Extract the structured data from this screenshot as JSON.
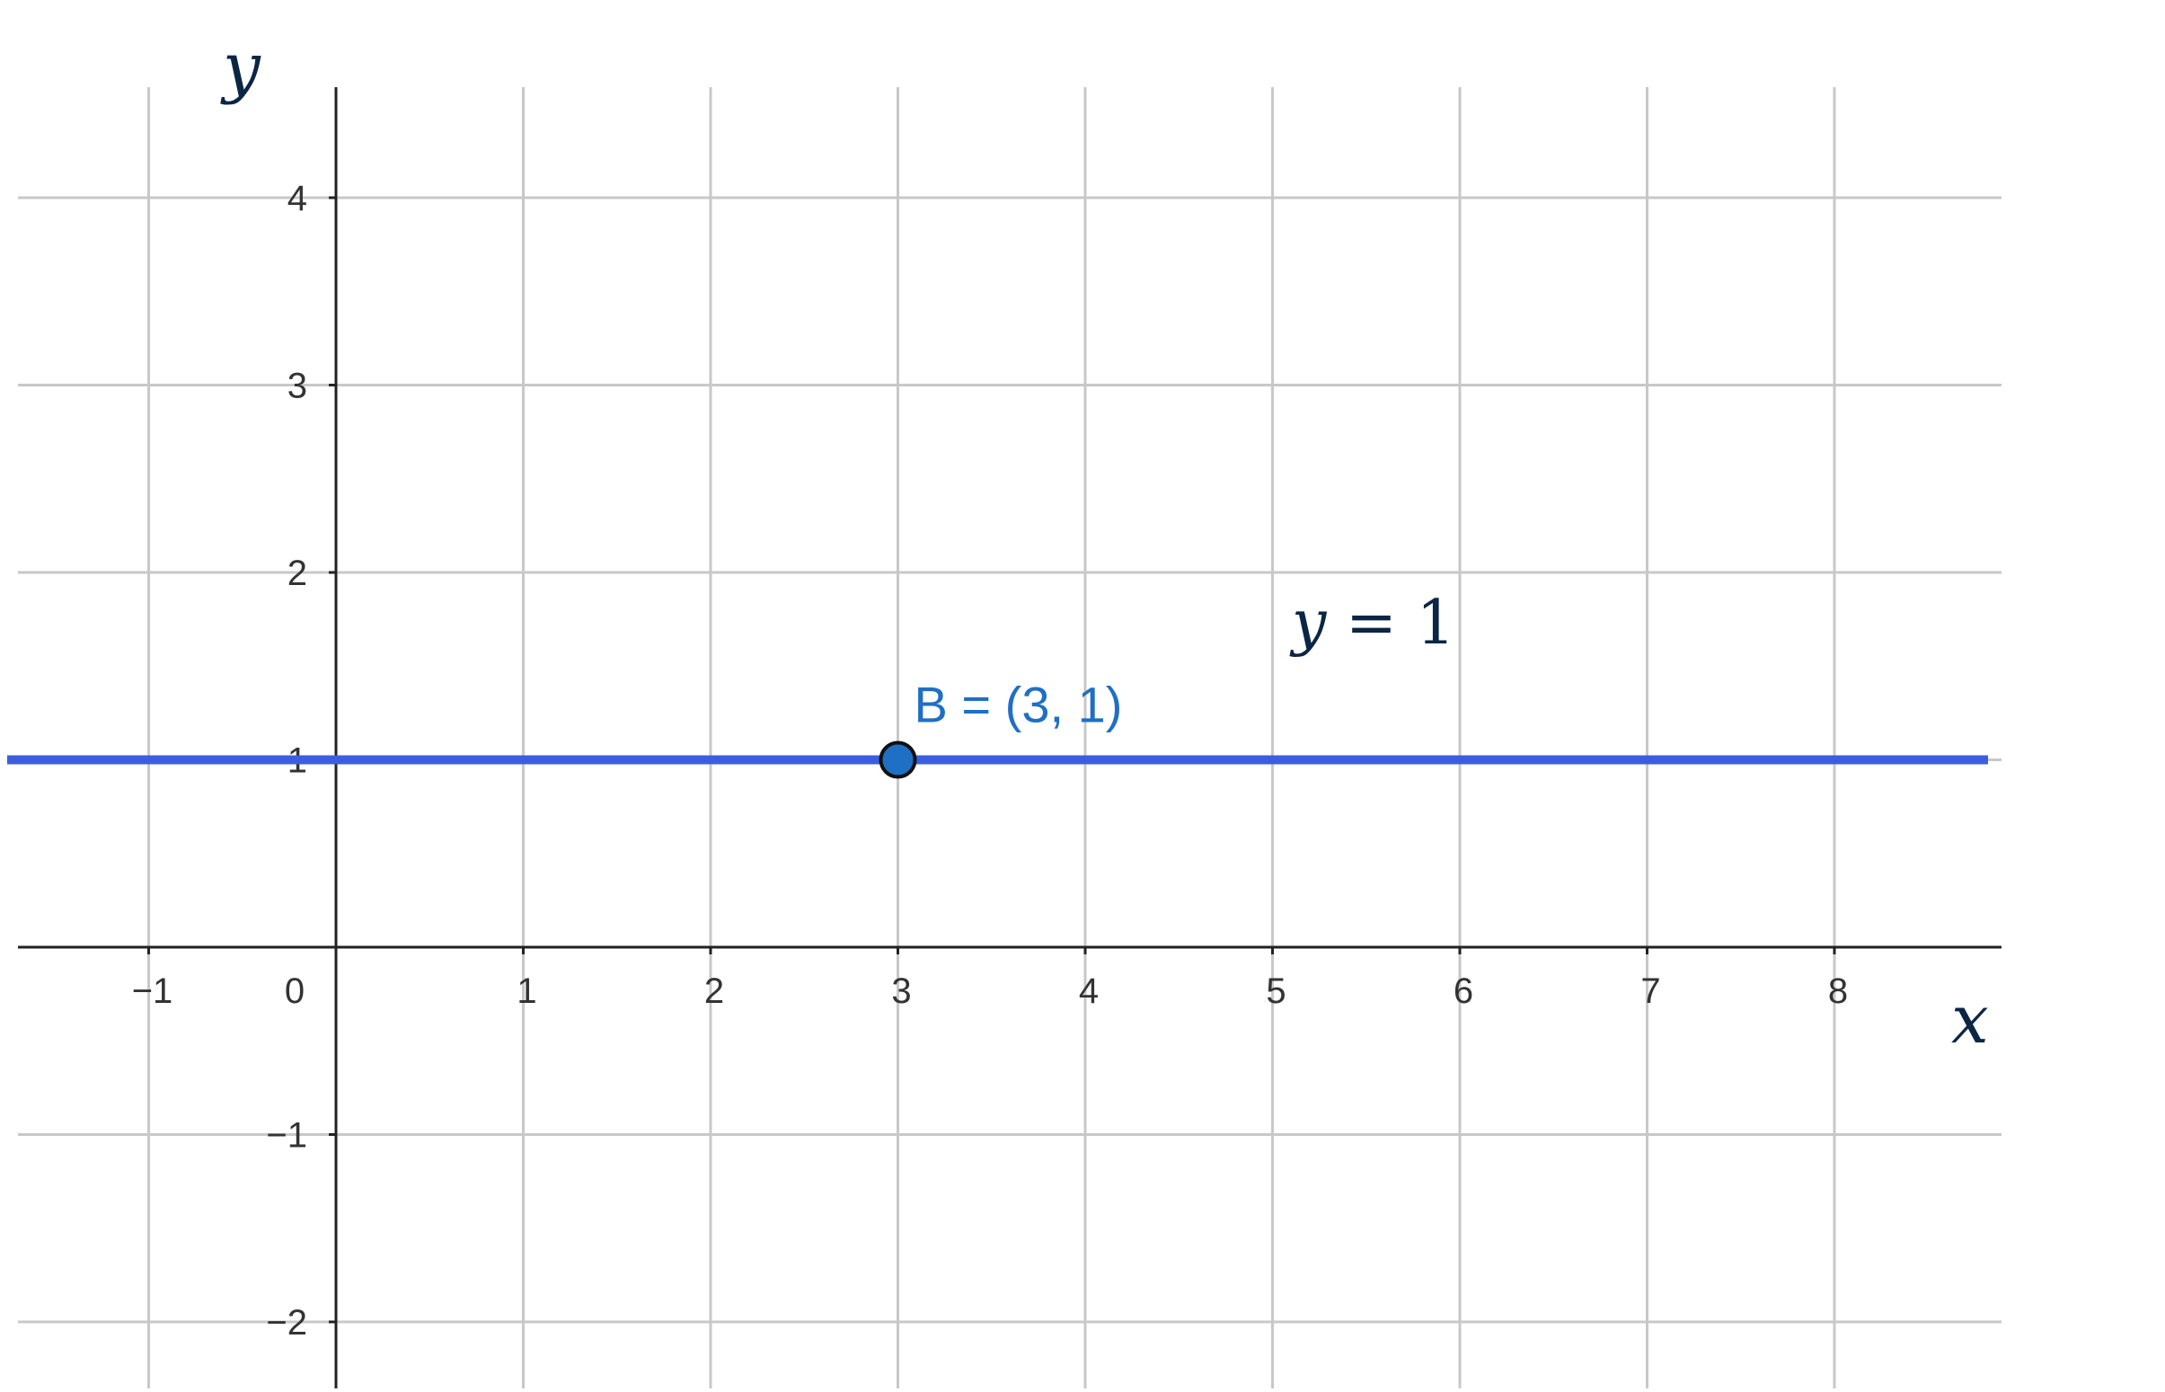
{
  "chart_data": {
    "type": "line",
    "title": "",
    "xlabel": "x",
    "ylabel": "y",
    "xlim": [
      -1.75,
      8.8
    ],
    "ylim": [
      -2.35,
      4.6
    ],
    "grid": true,
    "x_ticks": [
      -1,
      0,
      1,
      2,
      3,
      4,
      5,
      6,
      7,
      8
    ],
    "x_tick_labels": [
      "−1",
      "0",
      "1",
      "2",
      "3",
      "4",
      "5",
      "6",
      "7",
      "8"
    ],
    "y_ticks": [
      -2,
      -1,
      1,
      2,
      3,
      4
    ],
    "y_tick_labels": [
      "−2",
      "−1",
      "1",
      "2",
      "3",
      "4"
    ],
    "series": [
      {
        "x": [
          -1.75,
          8.8
        ],
        "y": [
          1,
          1
        ],
        "color": "#3b5fdc",
        "label": "y = 1"
      }
    ],
    "points": [
      {
        "x": 3,
        "y": 1,
        "label": "B = (3, 1)",
        "color": "#1f6fc5"
      }
    ],
    "equation_label": {
      "var": "y",
      "rest": " = 1"
    }
  }
}
